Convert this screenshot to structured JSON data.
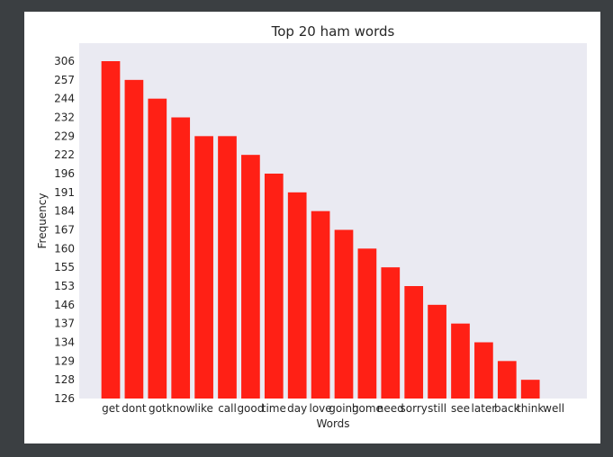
{
  "chart_data": {
    "type": "bar",
    "title": "Top 20 ham words",
    "xlabel": "Words",
    "ylabel": "Frequency",
    "categories": [
      "get",
      "dont",
      "got",
      "know",
      "like",
      "call",
      "good",
      "time",
      "day",
      "love",
      "going",
      "home",
      "need",
      "sorry",
      "still",
      "see",
      "later",
      "back",
      "think",
      "well"
    ],
    "values": [
      306,
      257,
      244,
      232,
      229,
      229,
      222,
      196,
      191,
      184,
      167,
      160,
      155,
      153,
      146,
      137,
      134,
      129,
      128,
      126
    ],
    "y_tick_labels": [
      "306",
      "257",
      "244",
      "232",
      "229",
      "222",
      "196",
      "191",
      "184",
      "167",
      "160",
      "155",
      "153",
      "146",
      "137",
      "134",
      "129",
      "128",
      "126"
    ],
    "y_axis_note": "categorical axis: tick labels are the distinct frequency values, evenly spaced",
    "bar_color": "#ff2015",
    "plot_background": "#eaeaf2",
    "grid": false,
    "legend": "none"
  }
}
